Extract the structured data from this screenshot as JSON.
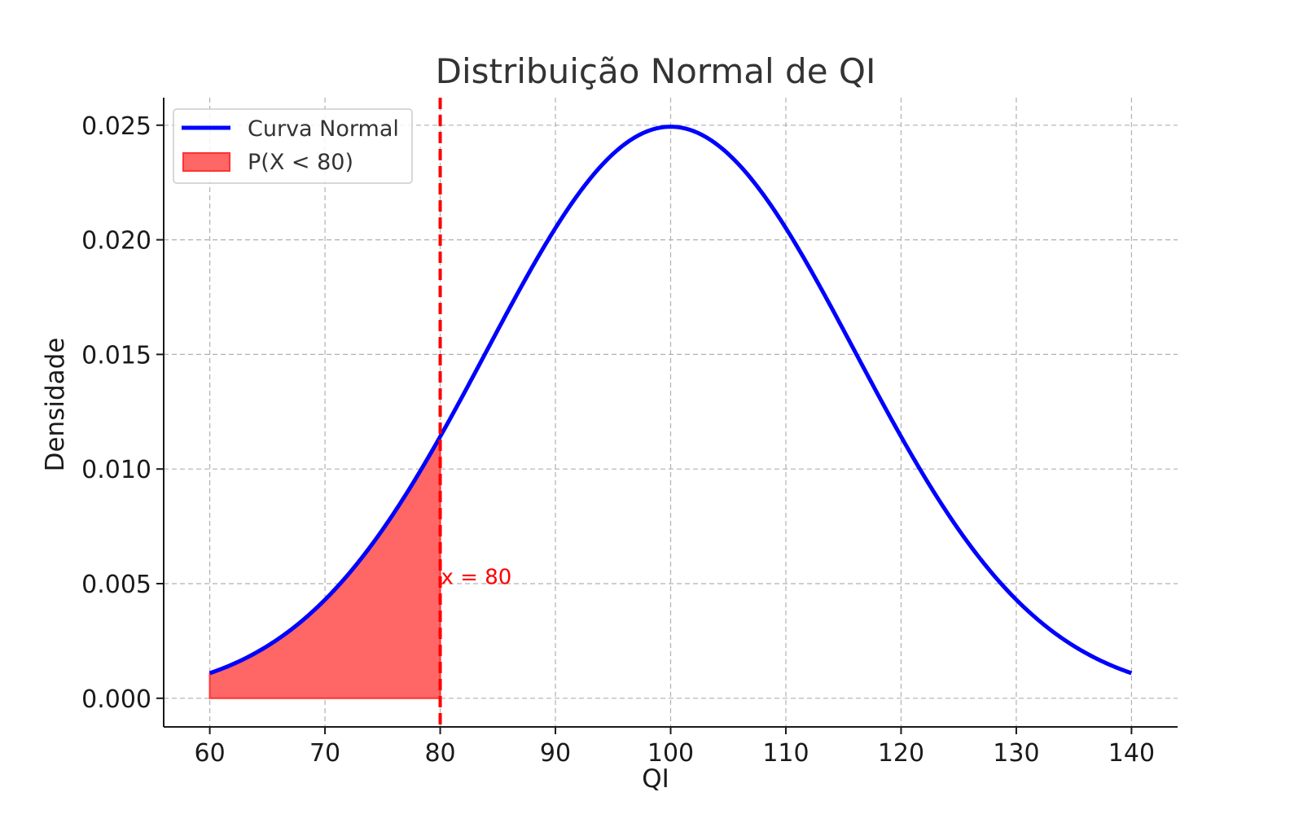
{
  "chart_data": {
    "type": "line",
    "title": "Distribuição Normal de QI",
    "xlabel": "QI",
    "ylabel": "Densidade",
    "xlim": [
      56,
      144
    ],
    "ylim": [
      -0.00125,
      0.0262
    ],
    "xticks": [
      60,
      70,
      80,
      90,
      100,
      110,
      120,
      130,
      140
    ],
    "xtick_labels": [
      "60",
      "70",
      "80",
      "90",
      "100",
      "110",
      "120",
      "130",
      "140"
    ],
    "yticks": [
      0.0,
      0.005,
      0.01,
      0.015,
      0.02,
      0.025
    ],
    "ytick_labels": [
      "0.000",
      "0.005",
      "0.010",
      "0.015",
      "0.020",
      "0.025"
    ],
    "grid": true,
    "legend_position": "top-left",
    "series": [
      {
        "name": "Curva Normal",
        "kind": "normal-pdf",
        "mean": 100,
        "std": 16,
        "x_range": [
          60,
          140
        ],
        "color": "#0000ff",
        "x": [
          60,
          65,
          70,
          75,
          80,
          85,
          90,
          95,
          100,
          105,
          110,
          115,
          120,
          125,
          130,
          135,
          140
        ],
        "y": [
          0.0011,
          0.0023,
          0.0043,
          0.0071,
          0.0114,
          0.016,
          0.0206,
          0.0238,
          0.0249,
          0.0238,
          0.0206,
          0.016,
          0.0114,
          0.0071,
          0.0043,
          0.0023,
          0.0011
        ]
      }
    ],
    "shaded_area": {
      "name": "P(X < 80)",
      "x_from": 60,
      "x_to": 80,
      "color": "#ff6666"
    },
    "vline": {
      "x": 80,
      "color": "#ff0000",
      "style": "dashed"
    },
    "annotations": [
      {
        "text": "x = 80",
        "x": 80,
        "y": 0.0053,
        "color": "#ff0000"
      }
    ]
  }
}
